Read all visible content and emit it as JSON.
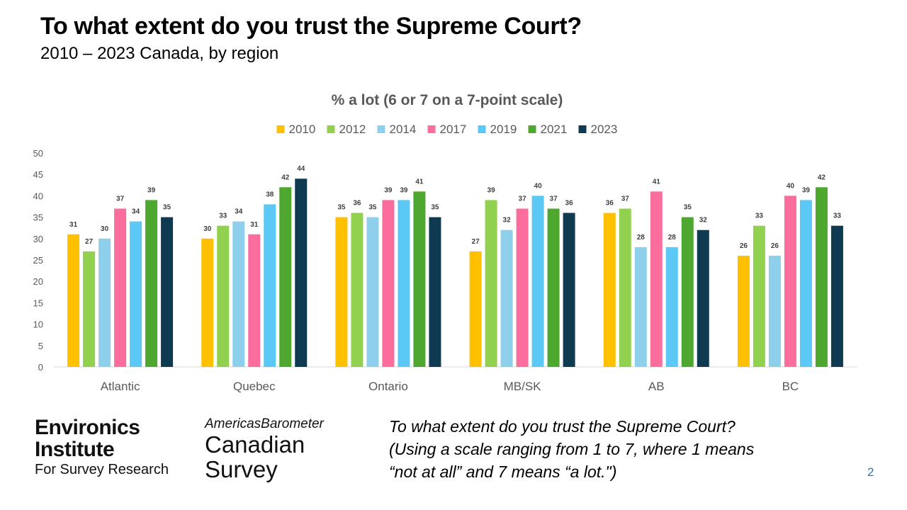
{
  "slide": {
    "title": "To what extent do you trust the Supreme Court?",
    "subtitle": "2010 – 2023  Canada, by region",
    "question_lines": [
      "To what extent do you trust the Supreme Court?",
      "(Using a scale ranging from 1 to 7, where 1 means",
      "“not at all” and 7 means “a lot.\")"
    ],
    "page_number": "2",
    "logo_environics": [
      "Environics",
      "Institute",
      "For Survey Research"
    ],
    "logo_americas": [
      "AmericasBarometer",
      "Canadian",
      "Survey"
    ]
  },
  "chart_data": {
    "type": "bar",
    "title": "% a lot (6 or 7 on a 7-point scale)",
    "xlabel": "",
    "ylabel": "",
    "ylim": [
      0,
      50
    ],
    "yticks": [
      0,
      5,
      10,
      15,
      20,
      25,
      30,
      35,
      40,
      45,
      50
    ],
    "legend_position": "top",
    "categories": [
      "Atlantic",
      "Quebec",
      "Ontario",
      "MB/SK",
      "AB",
      "BC"
    ],
    "series": [
      {
        "name": "2010",
        "color": "#ffc000",
        "values": [
          31,
          30,
          35,
          27,
          36,
          26
        ]
      },
      {
        "name": "2012",
        "color": "#92d050",
        "values": [
          27,
          33,
          36,
          39,
          37,
          33
        ]
      },
      {
        "name": "2014",
        "color": "#8ecfec",
        "values": [
          30,
          34,
          35,
          32,
          28,
          26
        ]
      },
      {
        "name": "2017",
        "color": "#fb6d9c",
        "values": [
          37,
          31,
          39,
          37,
          41,
          40
        ]
      },
      {
        "name": "2019",
        "color": "#5bc8f5",
        "values": [
          34,
          38,
          39,
          40,
          28,
          39
        ]
      },
      {
        "name": "2021",
        "color": "#4ea72e",
        "values": [
          39,
          42,
          41,
          37,
          35,
          42
        ]
      },
      {
        "name": "2023",
        "color": "#0e3a52",
        "values": [
          35,
          44,
          35,
          36,
          32,
          33
        ]
      }
    ]
  }
}
